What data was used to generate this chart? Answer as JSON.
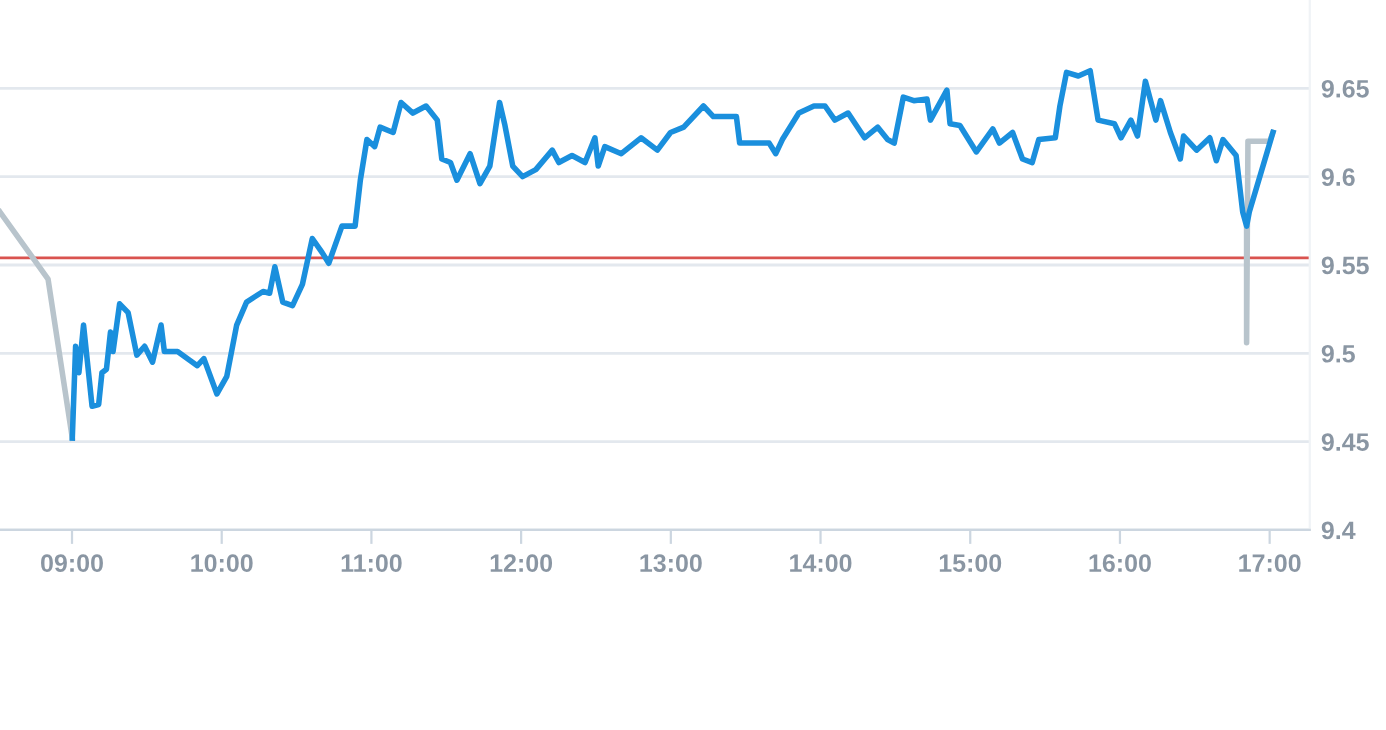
{
  "chart_data": {
    "type": "line",
    "xlim": [
      8.519,
      17.268
    ],
    "ylim": [
      9.4,
      9.7
    ],
    "xticks": [
      {
        "value": 9,
        "label": "09:00"
      },
      {
        "value": 10,
        "label": "10:00"
      },
      {
        "value": 11,
        "label": "11:00"
      },
      {
        "value": 12,
        "label": "12:00"
      },
      {
        "value": 13,
        "label": "13:00"
      },
      {
        "value": 14,
        "label": "14:00"
      },
      {
        "value": 15,
        "label": "15:00"
      },
      {
        "value": 16,
        "label": "16:00"
      },
      {
        "value": 17,
        "label": "17:00"
      }
    ],
    "yticks": [
      9.4,
      9.45,
      9.5,
      9.55,
      9.6,
      9.65
    ],
    "grid": "y",
    "line_style": "solid",
    "marker": "none",
    "ref_lines": [
      {
        "axis": "y",
        "value": 9.554,
        "color": "#d9534f"
      }
    ],
    "series": [
      {
        "color": "#b8c4cc",
        "x": [
          8.519,
          8.84,
          9.002
        ],
        "values": [
          9.58,
          9.542,
          9.452
        ]
      },
      {
        "color": "#b8c4cc",
        "x": [
          16.846,
          16.846,
          16.855,
          17.0,
          17.022
        ],
        "values": [
          9.572,
          9.506,
          9.62,
          9.62,
          9.625
        ]
      },
      {
        "color": "#1a8fdd",
        "x": [
          9.002,
          9.024,
          9.046,
          9.077,
          9.134,
          9.178,
          9.2,
          9.23,
          9.257,
          9.274,
          9.318,
          9.375,
          9.433,
          9.485,
          9.538,
          9.595,
          9.617,
          9.705,
          9.837,
          9.881,
          9.968,
          10.034,
          10.1,
          10.166,
          10.276,
          10.32,
          10.355,
          10.408,
          10.473,
          10.539,
          10.605,
          10.671,
          10.715,
          10.803,
          10.891,
          10.926,
          10.97,
          11.022,
          11.058,
          11.145,
          11.198,
          11.277,
          11.365,
          11.44,
          11.47,
          11.528,
          11.571,
          11.659,
          11.725,
          11.791,
          11.856,
          11.892,
          11.944,
          12.01,
          12.098,
          12.208,
          12.252,
          12.34,
          12.427,
          12.493,
          12.515,
          12.559,
          12.669,
          12.801,
          12.91,
          12.998,
          13.086,
          13.218,
          13.284,
          13.438,
          13.46,
          13.657,
          13.701,
          13.745,
          13.855,
          13.956,
          14.03,
          14.096,
          14.184,
          14.294,
          14.382,
          14.448,
          14.492,
          14.553,
          14.623,
          14.711,
          14.734,
          14.844,
          14.865,
          14.931,
          15.041,
          15.151,
          15.195,
          15.283,
          15.349,
          15.414,
          15.458,
          15.568,
          15.599,
          15.643,
          15.722,
          15.801,
          15.854,
          15.963,
          16.007,
          16.073,
          16.117,
          16.17,
          16.24,
          16.271,
          16.337,
          16.403,
          16.425,
          16.512,
          16.6,
          16.644,
          16.688,
          16.776,
          16.82,
          16.846,
          16.864,
          17.022
        ],
        "values": [
          9.452,
          9.504,
          9.489,
          9.516,
          9.47,
          9.471,
          9.489,
          9.491,
          9.512,
          9.501,
          9.528,
          9.523,
          9.499,
          9.504,
          9.495,
          9.516,
          9.501,
          9.501,
          9.493,
          9.497,
          9.477,
          9.487,
          9.516,
          9.529,
          9.535,
          9.534,
          9.549,
          9.529,
          9.527,
          9.539,
          9.565,
          9.557,
          9.551,
          9.572,
          9.572,
          9.598,
          9.621,
          9.617,
          9.628,
          9.625,
          9.642,
          9.636,
          9.64,
          9.632,
          9.61,
          9.608,
          9.598,
          9.613,
          9.596,
          9.606,
          9.642,
          9.629,
          9.606,
          9.6,
          9.604,
          9.615,
          9.608,
          9.612,
          9.608,
          9.622,
          9.606,
          9.617,
          9.613,
          9.622,
          9.615,
          9.625,
          9.628,
          9.64,
          9.634,
          9.634,
          9.619,
          9.619,
          9.613,
          9.621,
          9.636,
          9.64,
          9.64,
          9.632,
          9.636,
          9.622,
          9.628,
          9.621,
          9.619,
          9.645,
          9.643,
          9.644,
          9.632,
          9.649,
          9.63,
          9.629,
          9.614,
          9.627,
          9.619,
          9.625,
          9.61,
          9.608,
          9.621,
          9.622,
          9.64,
          9.659,
          9.657,
          9.66,
          9.632,
          9.63,
          9.622,
          9.632,
          9.623,
          9.654,
          9.632,
          9.643,
          9.625,
          9.61,
          9.623,
          9.615,
          9.622,
          9.609,
          9.621,
          9.612,
          9.58,
          9.572,
          9.58,
          9.625
        ]
      }
    ]
  }
}
